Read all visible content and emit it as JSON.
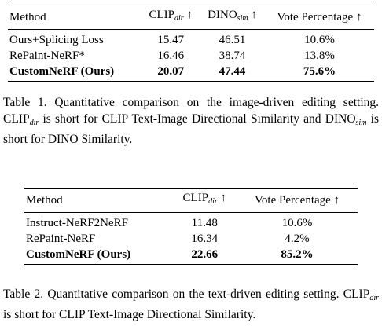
{
  "table1": {
    "headers": {
      "method": "Method",
      "clip": "CLIP",
      "clip_sub": "dir",
      "clip_arrow": " ↑",
      "dino": "DINO",
      "dino_sub": "sim",
      "dino_arrow": " ↑",
      "vote": "Vote Percentage ↑"
    },
    "rows": [
      {
        "method": "Ours+Splicing Loss",
        "clip": "15.47",
        "dino": "46.51",
        "vote": "10.6%"
      },
      {
        "method": "RePaint-NeRF*",
        "clip": "16.46",
        "dino": "38.74",
        "vote": "13.8%"
      },
      {
        "method": "CustomNeRF (Ours)",
        "clip": "20.07",
        "dino": "47.44",
        "vote": "75.6%"
      }
    ],
    "caption": {
      "label": "Table 1.",
      "part1": " Quantitative comparison on the image-driven editing setting. CLIP",
      "sub1": "dir",
      "part2": " is short for CLIP Text-Image Directional Similarity and DINO",
      "sub2": "sim",
      "part3": " is short for DINO Similarity."
    }
  },
  "table2": {
    "headers": {
      "method": "Method",
      "clip": "CLIP",
      "clip_sub": "dir",
      "clip_arrow": " ↑",
      "vote": "Vote Percentage ↑"
    },
    "rows": [
      {
        "method": "Instruct-NeRF2NeRF",
        "clip": "11.48",
        "vote": "10.6%"
      },
      {
        "method": "RePaint-NeRF",
        "clip": "16.34",
        "vote": "4.2%"
      },
      {
        "method": "CustomNeRF (Ours)",
        "clip": "22.66",
        "vote": "85.2%"
      }
    ],
    "caption": {
      "label": "Table 2.",
      "part1": " Quantitative comparison on the text-driven editing setting. CLIP",
      "sub1": "dir",
      "part2": " is short for CLIP Text-Image Directional Similarity."
    }
  }
}
